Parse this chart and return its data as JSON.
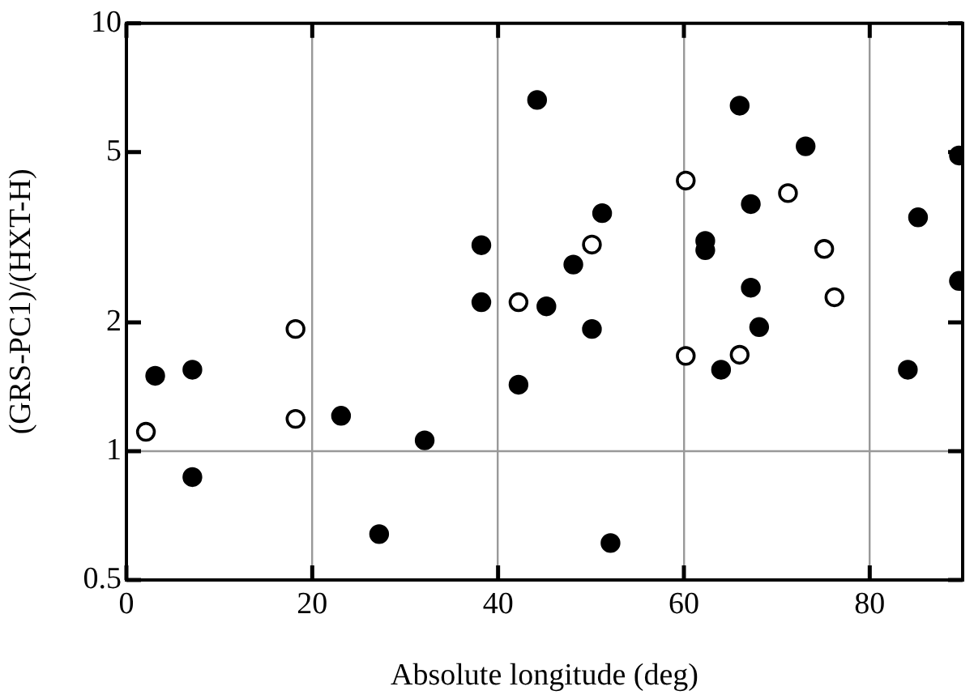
{
  "chart_data": {
    "type": "scatter",
    "xlabel": "Absolute longitude (deg)",
    "ylabel": "(GRS-PC1)/(HXT-H)",
    "xlim": [
      0,
      90
    ],
    "xticks": [
      0,
      20,
      40,
      60,
      80
    ],
    "ylim": [
      0.5,
      10
    ],
    "yticks": [
      0.5,
      1,
      2,
      5,
      10
    ],
    "log": "y",
    "grid": "x",
    "legend": false,
    "marker": "circle",
    "ref_lines": [
      {
        "axis": "y",
        "value": 1,
        "color": "#999999"
      }
    ],
    "series": [
      {
        "color": "#000000",
        "x": [
          3.1,
          7.1,
          7.1,
          23.1,
          32.1,
          27.2,
          38.2,
          38.2,
          44.2,
          42.2,
          45.2,
          48.1,
          50.1,
          51.2,
          52.1,
          66.0,
          73.1,
          67.2,
          62.3,
          62.3,
          67.2,
          68.1,
          64.0,
          84.1,
          85.2,
          89.6,
          89.6
        ],
        "values": [
          1.5,
          1.55,
          0.87,
          1.21,
          1.06,
          0.64,
          3.03,
          2.23,
          6.62,
          1.43,
          2.18,
          2.73,
          1.93,
          3.6,
          0.61,
          6.42,
          5.16,
          3.78,
          3.1,
          2.95,
          2.41,
          1.95,
          1.55,
          1.55,
          3.52,
          4.91,
          2.5
        ]
      },
      {
        "color": "#ffffff",
        "x": [
          2.1,
          18.2,
          18.2,
          42.2,
          50.1,
          60.2,
          60.2,
          66.0,
          71.2,
          75.1,
          76.2
        ],
        "values": [
          1.11,
          1.93,
          1.19,
          2.23,
          3.04,
          4.29,
          1.67,
          1.68,
          4.01,
          2.97,
          2.29
        ]
      }
    ]
  }
}
